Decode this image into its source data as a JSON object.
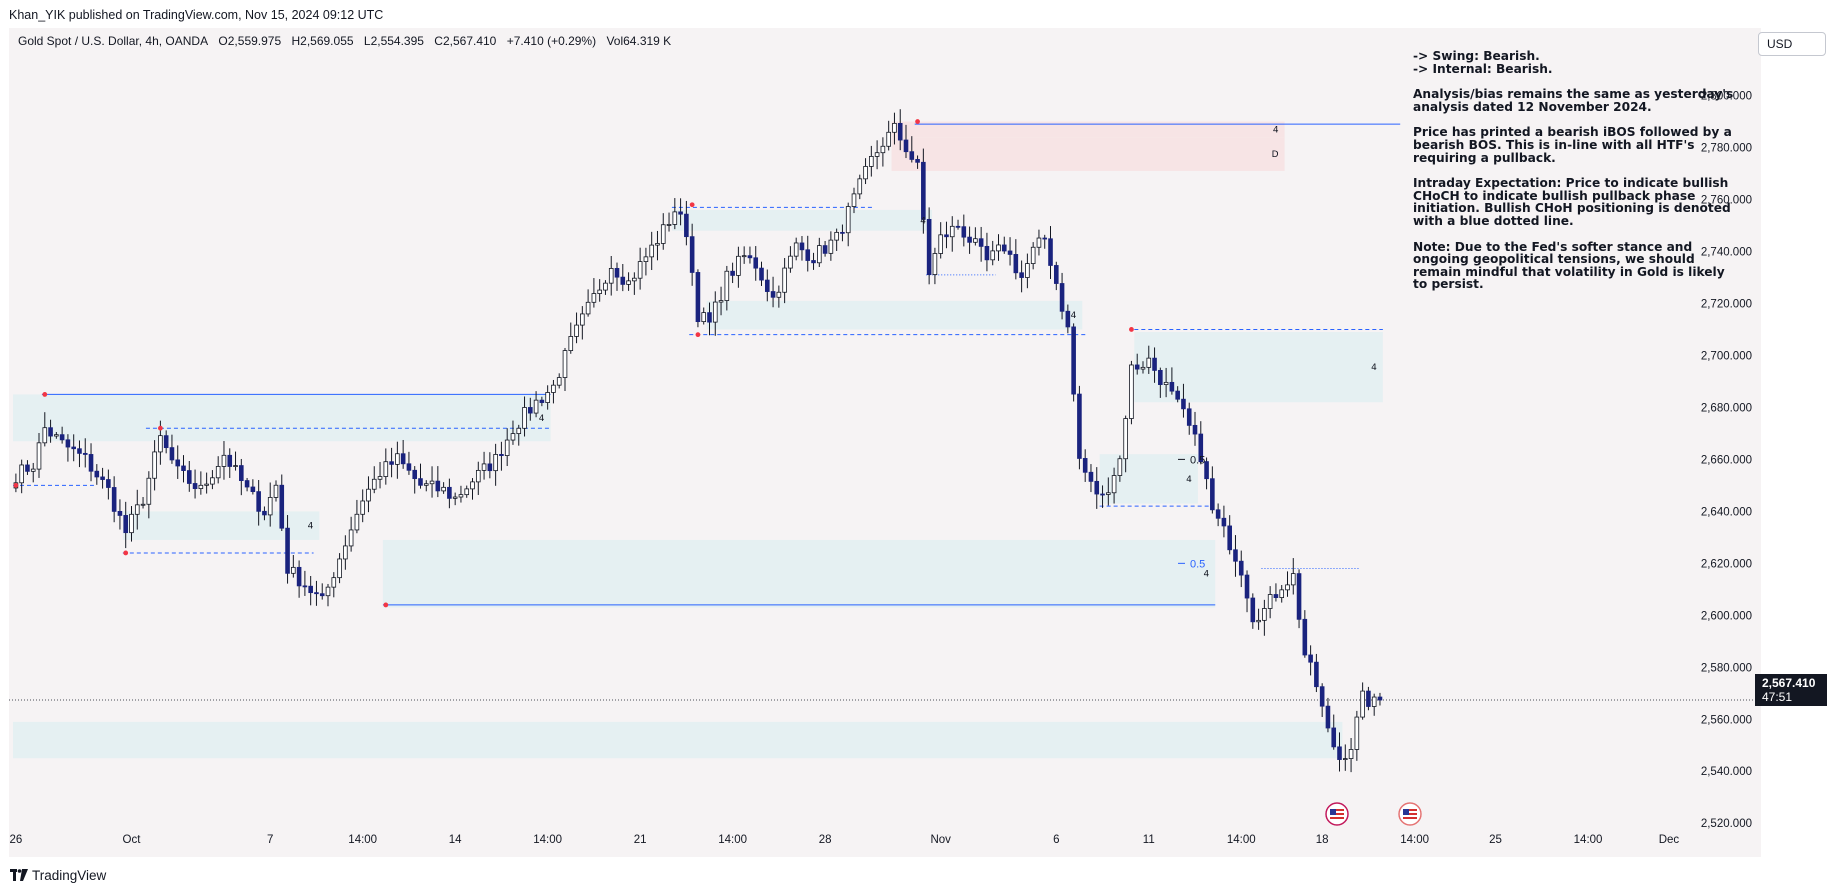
{
  "header": {
    "publisher": "Khan_YIK published on TradingView.com, Nov 15, 2024 09:12 UTC"
  },
  "symbol": {
    "name": "Gold Spot / U.S. Dollar, 4h, OANDA",
    "open": "O2,559.975",
    "high": "H2,569.055",
    "low": "L2,554.395",
    "close": "C2,567.410",
    "change": "+7.410 (+0.29%)",
    "volume": "Vol64.319 K"
  },
  "currency": "USD",
  "last_price": {
    "price": "2,567.410",
    "timer": "47:51"
  },
  "analysis": [
    "-> Swing:  Bearish.",
    "-> Internal:  Bearish.",
    "Analysis/bias remains the same as yesterday's analysis dated 12 November 2024.",
    "Price has printed a bearish iBOS followed by a bearish BOS.  This is in-line with all HTF's requiring a pullback.",
    "Intraday Expectation: Price to indicate bullish CHoCH to indicate bullish pullback phase initiation.  Bullish CHoH positioning is denoted with a blue dotted line.",
    "Note: Due to the Fed's softer stance and ongoing geopolitical tensions, we should remain mindful that volatility in Gold is likely to persist."
  ],
  "footer": {
    "brand": "TradingView"
  },
  "colors": {
    "up_candle": "#ffffff",
    "down_candle": "#1a237e",
    "wick": "#131722",
    "zone_demand": "#e3f0f2",
    "zone_supply": "#f7e2e3",
    "structure_line": "#2962ff",
    "swing_point": "#f23645",
    "price_line": "#131722",
    "background": "#f6f3f4"
  },
  "chart_data": {
    "type": "candlestick",
    "timeframe": "4h",
    "y_axis": {
      "ticks": [
        2520,
        2540,
        2560,
        2580,
        2600,
        2620,
        2640,
        2660,
        2680,
        2700,
        2720,
        2740,
        2760,
        2780,
        2800
      ],
      "tick_labels": [
        "2,520.000",
        "2,540.000",
        "2,560.000",
        "2,580.000",
        "2,600.000",
        "2,620.000",
        "2,640.000",
        "2,660.000",
        "2,680.000",
        "2,700.000",
        "2,720.000",
        "2,740.000",
        "2,760.000",
        "2,780.000",
        "2,800.000"
      ],
      "range": [
        2507,
        2826
      ]
    },
    "x_axis": {
      "tick_labels": [
        "26",
        "Oct",
        "7",
        "14:00",
        "14",
        "14:00",
        "21",
        "14:00",
        "28",
        "Nov",
        "6",
        "11",
        "14:00",
        "18",
        "14:00",
        "25",
        "14:00",
        "Dec"
      ],
      "tick_bars": [
        0,
        20,
        44,
        60,
        76,
        92,
        108,
        124,
        140,
        160,
        180,
        196,
        212,
        226,
        242,
        256,
        272,
        286
      ]
    },
    "waypoints": [
      [
        0,
        2654
      ],
      [
        3,
        2658
      ],
      [
        5,
        2672
      ],
      [
        8,
        2666
      ],
      [
        12,
        2660
      ],
      [
        16,
        2648
      ],
      [
        19,
        2632
      ],
      [
        22,
        2645
      ],
      [
        25,
        2668
      ],
      [
        28,
        2655
      ],
      [
        32,
        2648
      ],
      [
        36,
        2662
      ],
      [
        40,
        2648
      ],
      [
        43,
        2640
      ],
      [
        45,
        2650
      ],
      [
        47,
        2618
      ],
      [
        50,
        2612
      ],
      [
        53,
        2605
      ],
      [
        57,
        2628
      ],
      [
        60,
        2645
      ],
      [
        63,
        2655
      ],
      [
        66,
        2660
      ],
      [
        70,
        2650
      ],
      [
        74,
        2648
      ],
      [
        76,
        2645
      ],
      [
        79,
        2652
      ],
      [
        83,
        2660
      ],
      [
        86,
        2672
      ],
      [
        90,
        2682
      ],
      [
        93,
        2688
      ],
      [
        96,
        2705
      ],
      [
        99,
        2718
      ],
      [
        103,
        2735
      ],
      [
        106,
        2728
      ],
      [
        109,
        2738
      ],
      [
        112,
        2748
      ],
      [
        114,
        2756
      ],
      [
        116,
        2748
      ],
      [
        118,
        2716
      ],
      [
        120,
        2712
      ],
      [
        123,
        2730
      ],
      [
        126,
        2738
      ],
      [
        128,
        2735
      ],
      [
        131,
        2722
      ],
      [
        135,
        2742
      ],
      [
        138,
        2738
      ],
      [
        142,
        2745
      ],
      [
        145,
        2760
      ],
      [
        148,
        2775
      ],
      [
        150,
        2782
      ],
      [
        152,
        2787
      ],
      [
        154,
        2780
      ],
      [
        156,
        2772
      ],
      [
        158,
        2732
      ],
      [
        160,
        2745
      ],
      [
        163,
        2750
      ],
      [
        166,
        2742
      ],
      [
        168,
        2736
      ],
      [
        171,
        2742
      ],
      [
        174,
        2730
      ],
      [
        176,
        2740
      ],
      [
        178,
        2745
      ],
      [
        180,
        2728
      ],
      [
        182,
        2710
      ],
      [
        184,
        2660
      ],
      [
        186,
        2650
      ],
      [
        188,
        2645
      ],
      [
        191,
        2660
      ],
      [
        193,
        2695
      ],
      [
        196,
        2698
      ],
      [
        199,
        2688
      ],
      [
        202,
        2677
      ],
      [
        205,
        2662
      ],
      [
        207,
        2640
      ],
      [
        210,
        2628
      ],
      [
        212,
        2618
      ],
      [
        214,
        2600
      ],
      [
        216,
        2602
      ],
      [
        219,
        2612
      ],
      [
        221,
        2615
      ],
      [
        223,
        2585
      ],
      [
        225,
        2573
      ],
      [
        227,
        2555
      ],
      [
        229,
        2545
      ],
      [
        231,
        2550
      ],
      [
        233,
        2568
      ],
      [
        235,
        2566
      ],
      [
        236,
        2567.41
      ]
    ],
    "last_close": 2567.41,
    "zones": [
      {
        "type": "demand",
        "label": "4",
        "from_bar": 0,
        "to_bar": 93,
        "low": 2667,
        "high": 2685
      },
      {
        "type": "demand",
        "label": "4",
        "from_bar": 19,
        "to_bar": 53,
        "low": 2629,
        "high": 2640
      },
      {
        "type": "demand",
        "label": "4",
        "from_bar": 64,
        "to_bar": 208,
        "low": 2603,
        "high": 2629
      },
      {
        "type": "demand",
        "label": "4",
        "from_bar": 114,
        "to_bar": 159,
        "low": 2748,
        "high": 2756
      },
      {
        "type": "demand",
        "label": "4",
        "from_bar": 120,
        "to_bar": 185,
        "low": 2710,
        "high": 2721
      },
      {
        "type": "demand",
        "label": "4",
        "from_bar": 188,
        "to_bar": 205,
        "low": 2643,
        "high": 2662
      },
      {
        "type": "demand",
        "label": "4",
        "from_bar": 194,
        "to_bar": 237,
        "low": 2682,
        "high": 2709
      },
      {
        "type": "demand",
        "label": "",
        "from_bar": 0,
        "to_bar": 230,
        "low": 2545,
        "high": 2559
      },
      {
        "type": "supply",
        "label": "4",
        "from_bar": 152,
        "to_bar": 220,
        "low": 2784,
        "high": 2790
      },
      {
        "type": "supply",
        "label": "D",
        "from_bar": 152,
        "to_bar": 220,
        "low": 2771,
        "high": 2784
      }
    ],
    "structure_lines": [
      {
        "price": 2685,
        "from_bar": 5,
        "to_bar": 93,
        "style": "solid"
      },
      {
        "price": 2604,
        "from_bar": 64,
        "to_bar": 208,
        "style": "solid"
      },
      {
        "price": 2789,
        "from_bar": 156,
        "to_bar": 240,
        "style": "solid"
      },
      {
        "price": 2672,
        "from_bar": 23,
        "to_bar": 93,
        "style": "dashed"
      },
      {
        "price": 2624,
        "from_bar": 19,
        "to_bar": 52,
        "style": "dashed"
      },
      {
        "price": 2650,
        "from_bar": 0,
        "to_bar": 14,
        "style": "dashed"
      },
      {
        "price": 2757,
        "from_bar": 114,
        "to_bar": 149,
        "style": "dashed"
      },
      {
        "price": 2708,
        "from_bar": 117,
        "to_bar": 186,
        "style": "dashed"
      },
      {
        "price": 2710,
        "from_bar": 194,
        "to_bar": 237,
        "style": "dashed"
      },
      {
        "price": 2642,
        "from_bar": 188,
        "to_bar": 207,
        "style": "dashed"
      },
      {
        "price": 2731,
        "from_bar": 158,
        "to_bar": 170,
        "style": "dotted"
      },
      {
        "price": 2618,
        "from_bar": 216,
        "to_bar": 233,
        "style": "dotted"
      }
    ],
    "swing_points": [
      {
        "bar": 0,
        "price": 2650
      },
      {
        "bar": 5,
        "price": 2685
      },
      {
        "bar": 19,
        "price": 2624
      },
      {
        "bar": 25,
        "price": 2672
      },
      {
        "bar": 64,
        "price": 2604
      },
      {
        "bar": 117,
        "price": 2758
      },
      {
        "bar": 118,
        "price": 2708
      },
      {
        "bar": 156,
        "price": 2790
      },
      {
        "bar": 193,
        "price": 2710
      }
    ],
    "fib_labels": [
      {
        "text": "0.5",
        "price": 2660,
        "color": "#131722"
      },
      {
        "text": "0.5",
        "price": 2620,
        "color": "#2962ff"
      }
    ],
    "grid": false
  }
}
